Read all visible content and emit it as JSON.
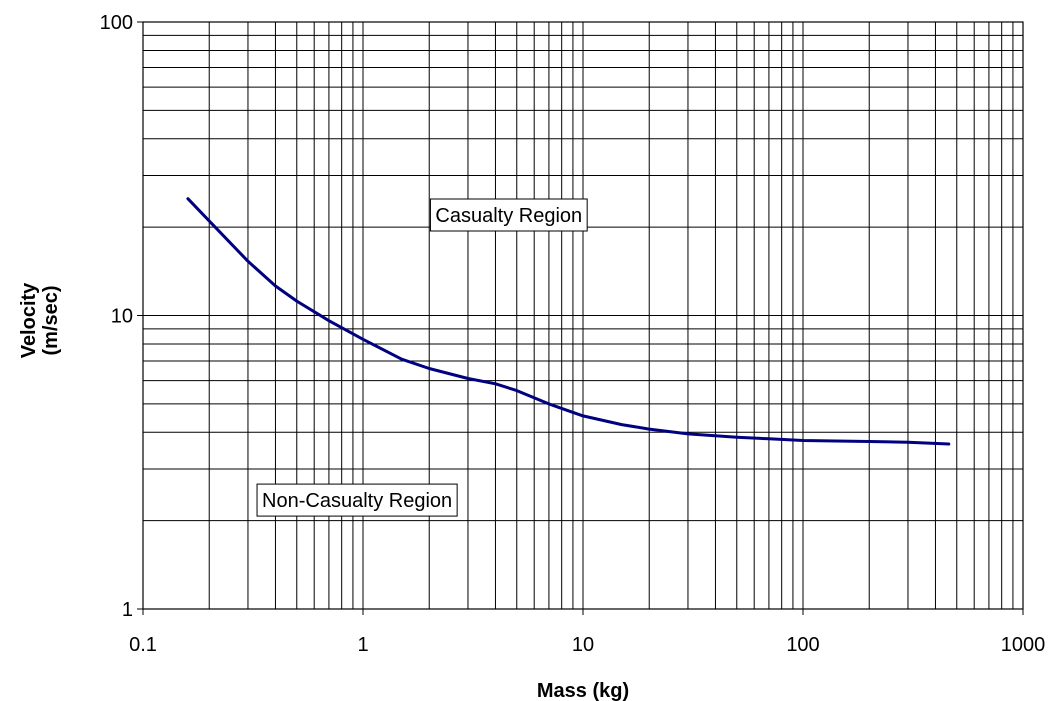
{
  "chart_data": {
    "type": "line",
    "title": "",
    "xlabel": "Mass (kg)",
    "ylabel_lines": [
      "Velocity",
      "(m/sec)"
    ],
    "x_scale": "log",
    "y_scale": "log",
    "xlim": [
      0.1,
      1000
    ],
    "ylim": [
      1,
      100
    ],
    "x_ticks": [
      0.1,
      1,
      10,
      100,
      1000
    ],
    "x_tick_labels": [
      "0.1",
      "1",
      "10",
      "100",
      "1000"
    ],
    "y_ticks": [
      1,
      10,
      100
    ],
    "y_tick_labels": [
      "1",
      "10",
      "100"
    ],
    "grid": true,
    "legend": "none",
    "series": [
      {
        "color": "#000080",
        "x": [
          0.16,
          0.2,
          0.3,
          0.4,
          0.5,
          0.7,
          1,
          1.5,
          2,
          3,
          4,
          5,
          7,
          10,
          15,
          20,
          30,
          50,
          70,
          100,
          200,
          300,
          460
        ],
        "y": [
          25,
          21,
          15.3,
          12.6,
          11.2,
          9.6,
          8.3,
          7.1,
          6.6,
          6.1,
          5.85,
          5.55,
          5.0,
          4.55,
          4.25,
          4.1,
          3.95,
          3.85,
          3.8,
          3.75,
          3.72,
          3.7,
          3.65
        ]
      }
    ],
    "annotations": [
      {
        "text": "Casualty Region",
        "x": 4.6,
        "y": 22
      },
      {
        "text": "Non-Casualty Region",
        "x": 0.94,
        "y": 2.35
      }
    ]
  }
}
